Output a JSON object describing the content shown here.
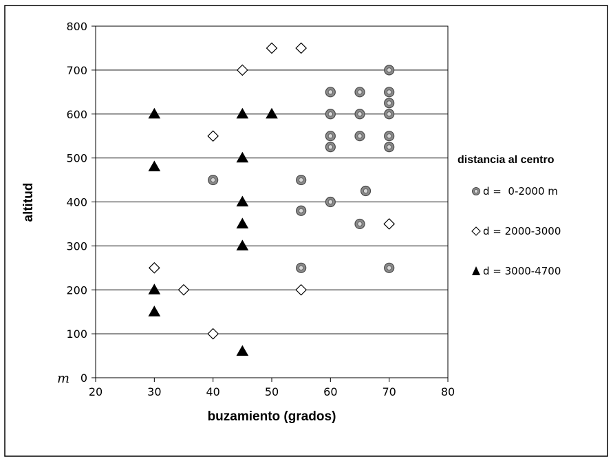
{
  "chart_data": {
    "type": "scatter",
    "xlabel": "buzamiento (grados)",
    "ylabel": "altitud",
    "yunit": "m",
    "xlim": [
      20,
      80
    ],
    "ylim": [
      0,
      800
    ],
    "xticks": [
      20,
      30,
      40,
      50,
      60,
      70,
      80
    ],
    "yticks": [
      0,
      100,
      200,
      300,
      400,
      500,
      600,
      700,
      800
    ],
    "grid": "horizontal",
    "legend_title": "distancia al centro",
    "legend_placement": "right",
    "series": [
      {
        "name": "d =  0-2000 m",
        "marker": "circle",
        "color": "#888888",
        "points": [
          [
            70,
            700
          ],
          [
            60,
            650
          ],
          [
            65,
            650
          ],
          [
            70,
            650
          ],
          [
            70,
            625
          ],
          [
            60,
            600
          ],
          [
            65,
            600
          ],
          [
            70,
            600
          ],
          [
            60,
            550
          ],
          [
            65,
            550
          ],
          [
            70,
            550
          ],
          [
            60,
            525
          ],
          [
            70,
            525
          ],
          [
            40,
            450
          ],
          [
            55,
            450
          ],
          [
            66,
            425
          ],
          [
            60,
            400
          ],
          [
            55,
            380
          ],
          [
            65,
            350
          ],
          [
            55,
            250
          ],
          [
            70,
            250
          ]
        ]
      },
      {
        "name": "d = 2000-3000",
        "marker": "diamond",
        "color": "#ffffff",
        "points": [
          [
            50,
            750
          ],
          [
            55,
            750
          ],
          [
            45,
            700
          ],
          [
            40,
            550
          ],
          [
            70,
            350
          ],
          [
            30,
            250
          ],
          [
            35,
            200
          ],
          [
            55,
            200
          ],
          [
            40,
            100
          ]
        ]
      },
      {
        "name": "d = 3000-4700",
        "marker": "triangle",
        "color": "#000000",
        "points": [
          [
            30,
            600
          ],
          [
            45,
            600
          ],
          [
            50,
            600
          ],
          [
            45,
            500
          ],
          [
            30,
            480
          ],
          [
            45,
            400
          ],
          [
            45,
            350
          ],
          [
            45,
            300
          ],
          [
            30,
            200
          ],
          [
            30,
            150
          ],
          [
            45,
            60
          ]
        ]
      }
    ]
  }
}
